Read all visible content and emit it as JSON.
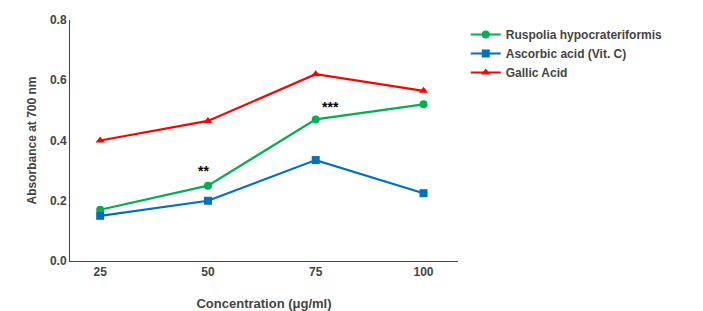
{
  "chart_data": {
    "type": "line",
    "x": [
      25,
      50,
      75,
      100
    ],
    "series": [
      {
        "name": "Ruspolia hypocrateriformis",
        "color": "#00b050",
        "marker": "circle",
        "values": [
          0.17,
          0.25,
          0.47,
          0.52
        ]
      },
      {
        "name": "Ascorbic acid (Vit. C)",
        "color": "#0070c0",
        "marker": "square",
        "values": [
          0.15,
          0.2,
          0.335,
          0.225
        ]
      },
      {
        "name": "Gallic Acid",
        "color": "#ff0000",
        "marker": "triangle-up",
        "values": [
          0.4,
          0.465,
          0.62,
          0.565
        ]
      }
    ],
    "x_label": "Concentration (μg/ml)",
    "y_label": "Absorbance at 700 nm",
    "xlim": [
      18,
      108
    ],
    "xticks": [
      25,
      50,
      75,
      100
    ],
    "ylim": [
      0.0,
      0.8
    ],
    "yticks": [
      {
        "value": 0.0,
        "label": "0.0"
      },
      0.2,
      0.4,
      0.6,
      0.8
    ],
    "annotations": [
      {
        "text": "**",
        "x": 49,
        "y": 0.265
      },
      {
        "text": "***",
        "x": 76,
        "y": 0.478
      }
    ],
    "grid": false,
    "legend": "right"
  }
}
